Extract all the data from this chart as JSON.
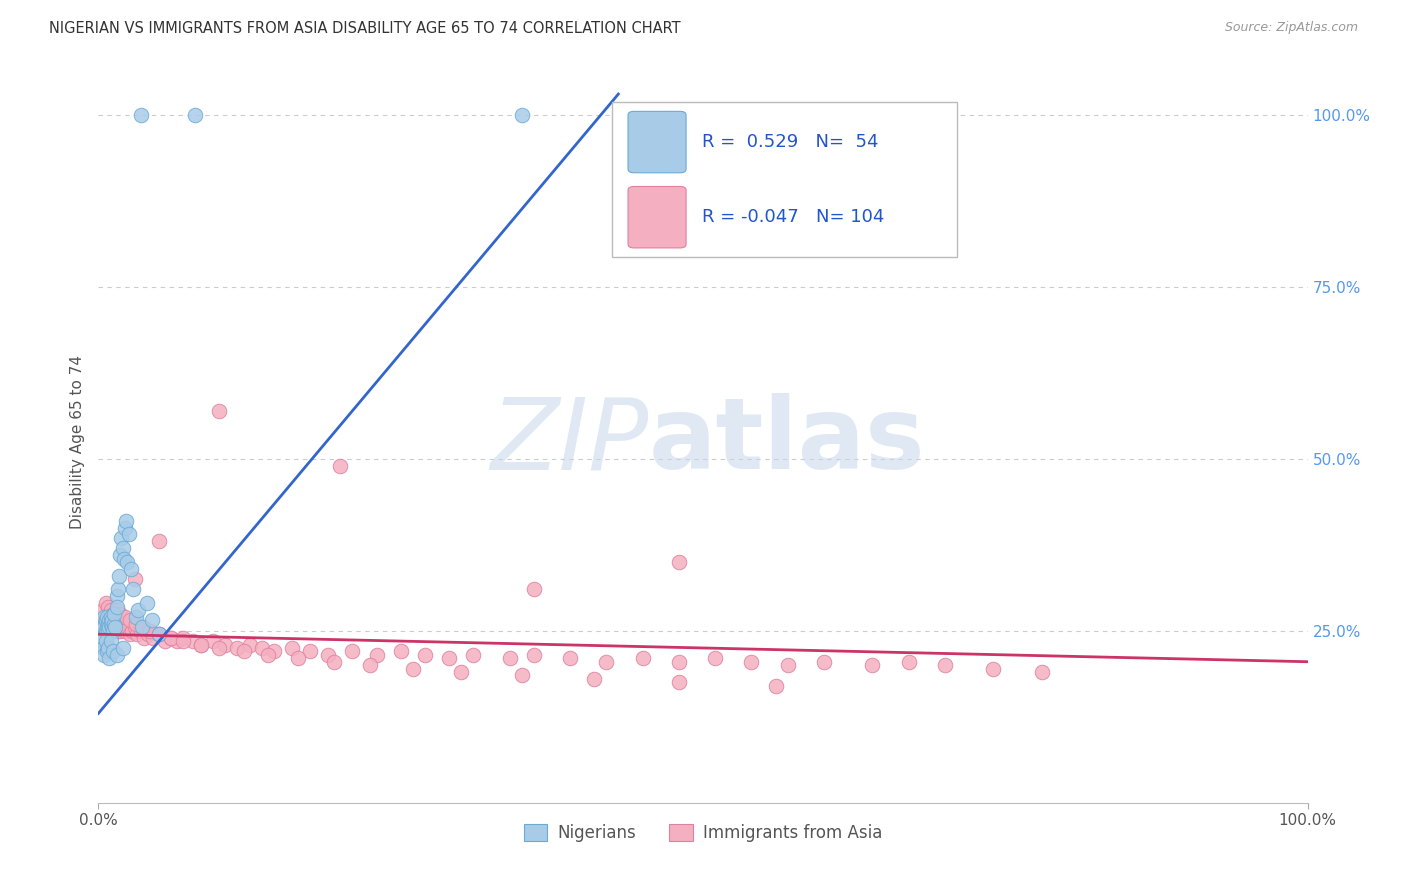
{
  "title": "NIGERIAN VS IMMIGRANTS FROM ASIA DISABILITY AGE 65 TO 74 CORRELATION CHART",
  "source": "Source: ZipAtlas.com",
  "ylabel": "Disability Age 65 to 74",
  "xlim": [
    0.0,
    1.0
  ],
  "ylim": [
    0.0,
    1.05
  ],
  "blue_scatter_color": "#a8cce8",
  "blue_edge_color": "#6aaad4",
  "pink_scatter_color": "#f4b0c0",
  "pink_edge_color": "#e080a0",
  "trend_blue_color": "#3366cc",
  "trend_pink_color": "#cc3366",
  "grid_color": "#cccccc",
  "bg_color": "#ffffff",
  "title_color": "#333333",
  "source_color": "#999999",
  "axis_label_color": "#555555",
  "right_tick_color": "#5599ee",
  "nigerians_label": "Nigerians",
  "asia_label": "Immigrants from Asia",
  "R_blue": 0.529,
  "N_blue": 54,
  "R_pink": -0.047,
  "N_pink": 104,
  "blue_trend_x": [
    0.0,
    0.43
  ],
  "blue_trend_y": [
    0.13,
    1.03
  ],
  "pink_trend_x": [
    0.0,
    1.0
  ],
  "pink_trend_y": [
    0.245,
    0.205
  ],
  "blue_x": [
    0.003,
    0.004,
    0.005,
    0.005,
    0.006,
    0.006,
    0.007,
    0.007,
    0.008,
    0.008,
    0.009,
    0.009,
    0.01,
    0.01,
    0.011,
    0.011,
    0.012,
    0.013,
    0.013,
    0.014,
    0.015,
    0.015,
    0.016,
    0.017,
    0.018,
    0.019,
    0.02,
    0.021,
    0.022,
    0.023,
    0.024,
    0.025,
    0.027,
    0.029,
    0.031,
    0.033,
    0.036,
    0.04,
    0.044,
    0.05,
    0.003,
    0.004,
    0.005,
    0.006,
    0.007,
    0.008,
    0.009,
    0.01,
    0.012,
    0.015,
    0.02,
    0.08,
    0.35,
    0.035
  ],
  "blue_y": [
    0.255,
    0.26,
    0.27,
    0.255,
    0.265,
    0.25,
    0.255,
    0.27,
    0.26,
    0.25,
    0.265,
    0.255,
    0.27,
    0.26,
    0.255,
    0.265,
    0.25,
    0.26,
    0.275,
    0.255,
    0.3,
    0.285,
    0.31,
    0.33,
    0.36,
    0.385,
    0.37,
    0.355,
    0.4,
    0.41,
    0.35,
    0.39,
    0.34,
    0.31,
    0.27,
    0.28,
    0.255,
    0.29,
    0.265,
    0.245,
    0.235,
    0.225,
    0.215,
    0.235,
    0.22,
    0.225,
    0.21,
    0.235,
    0.22,
    0.215,
    0.225,
    1.0,
    1.0,
    1.0
  ],
  "pink_x": [
    0.003,
    0.004,
    0.005,
    0.005,
    0.006,
    0.006,
    0.007,
    0.007,
    0.008,
    0.008,
    0.009,
    0.009,
    0.01,
    0.011,
    0.012,
    0.013,
    0.014,
    0.015,
    0.016,
    0.017,
    0.018,
    0.019,
    0.02,
    0.022,
    0.024,
    0.026,
    0.028,
    0.03,
    0.032,
    0.035,
    0.038,
    0.041,
    0.045,
    0.05,
    0.055,
    0.06,
    0.065,
    0.07,
    0.078,
    0.085,
    0.095,
    0.105,
    0.115,
    0.125,
    0.135,
    0.145,
    0.16,
    0.175,
    0.19,
    0.21,
    0.23,
    0.25,
    0.27,
    0.29,
    0.31,
    0.34,
    0.36,
    0.39,
    0.42,
    0.45,
    0.48,
    0.51,
    0.54,
    0.57,
    0.6,
    0.64,
    0.67,
    0.7,
    0.74,
    0.78,
    0.004,
    0.006,
    0.008,
    0.01,
    0.012,
    0.015,
    0.018,
    0.022,
    0.026,
    0.031,
    0.037,
    0.043,
    0.05,
    0.06,
    0.07,
    0.085,
    0.1,
    0.12,
    0.14,
    0.165,
    0.195,
    0.225,
    0.26,
    0.3,
    0.35,
    0.41,
    0.48,
    0.56,
    0.48,
    0.36,
    0.2,
    0.1,
    0.05,
    0.03
  ],
  "pink_y": [
    0.26,
    0.255,
    0.265,
    0.255,
    0.27,
    0.255,
    0.26,
    0.245,
    0.265,
    0.25,
    0.27,
    0.255,
    0.26,
    0.265,
    0.255,
    0.26,
    0.255,
    0.265,
    0.25,
    0.26,
    0.25,
    0.255,
    0.26,
    0.25,
    0.255,
    0.245,
    0.25,
    0.255,
    0.245,
    0.25,
    0.24,
    0.245,
    0.24,
    0.245,
    0.235,
    0.24,
    0.235,
    0.24,
    0.235,
    0.23,
    0.235,
    0.23,
    0.225,
    0.23,
    0.225,
    0.22,
    0.225,
    0.22,
    0.215,
    0.22,
    0.215,
    0.22,
    0.215,
    0.21,
    0.215,
    0.21,
    0.215,
    0.21,
    0.205,
    0.21,
    0.205,
    0.21,
    0.205,
    0.2,
    0.205,
    0.2,
    0.205,
    0.2,
    0.195,
    0.19,
    0.28,
    0.29,
    0.285,
    0.28,
    0.275,
    0.28,
    0.275,
    0.27,
    0.265,
    0.26,
    0.255,
    0.25,
    0.245,
    0.24,
    0.235,
    0.23,
    0.225,
    0.22,
    0.215,
    0.21,
    0.205,
    0.2,
    0.195,
    0.19,
    0.185,
    0.18,
    0.175,
    0.17,
    0.35,
    0.31,
    0.49,
    0.57,
    0.38,
    0.325
  ]
}
